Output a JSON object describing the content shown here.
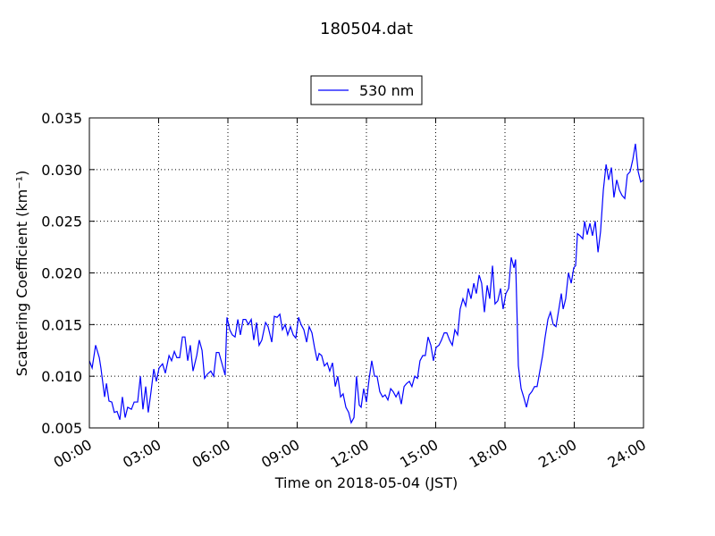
{
  "chart_data": {
    "type": "line",
    "title": "180504.dat",
    "x_label": "Time on 2018-05-04 (JST)",
    "y_label": "Scattering Coefficient (km⁻¹)",
    "legend": "top",
    "grid": true,
    "xlim": [
      0,
      24
    ],
    "xticks": [
      {
        "value": 0,
        "label": "00:00"
      },
      {
        "value": 3,
        "label": "03:00"
      },
      {
        "value": 6,
        "label": "06:00"
      },
      {
        "value": 9,
        "label": "09:00"
      },
      {
        "value": 12,
        "label": "12:00"
      },
      {
        "value": 15,
        "label": "15:00"
      },
      {
        "value": 18,
        "label": "18:00"
      },
      {
        "value": 21,
        "label": "21:00"
      },
      {
        "value": 24,
        "label": "24:00"
      }
    ],
    "ylim": [
      0.005,
      0.035
    ],
    "yticks": [
      0.005,
      {
        "value": 0.01,
        "label": "0.010"
      },
      0.015,
      {
        "value": 0.02,
        "label": "0.020"
      },
      0.025,
      {
        "value": 0.03,
        "label": "0.030"
      },
      0.035
    ],
    "x": [
      0,
      0.12,
      0.27,
      0.43,
      0.5,
      0.66,
      0.74,
      0.85,
      0.97,
      1.08,
      1.2,
      1.32,
      1.43,
      1.55,
      1.66,
      1.82,
      1.94,
      2.09,
      2.21,
      2.32,
      2.44,
      2.55,
      2.67,
      2.79,
      2.9,
      3.02,
      3.17,
      3.29,
      3.45,
      3.56,
      3.68,
      3.79,
      3.91,
      4.03,
      4.14,
      4.26,
      4.37,
      4.49,
      4.65,
      4.76,
      4.88,
      4.99,
      5.11,
      5.26,
      5.38,
      5.5,
      5.61,
      5.77,
      5.88,
      5.96,
      6.08,
      6.19,
      6.31,
      6.43,
      6.54,
      6.66,
      6.77,
      6.89,
      7.01,
      7.12,
      7.24,
      7.35,
      7.47,
      7.63,
      7.74,
      7.9,
      8.01,
      8.13,
      8.25,
      8.36,
      8.48,
      8.59,
      8.71,
      8.83,
      8.94,
      9.06,
      9.17,
      9.29,
      9.41,
      9.52,
      9.64,
      9.75,
      9.87,
      9.95,
      10.06,
      10.18,
      10.3,
      10.41,
      10.53,
      10.65,
      10.76,
      10.88,
      10.99,
      11.11,
      11.23,
      11.34,
      11.46,
      11.57,
      11.69,
      11.77,
      11.88,
      12.0,
      12.12,
      12.23,
      12.35,
      12.46,
      12.58,
      12.7,
      12.81,
      12.93,
      13.05,
      13.16,
      13.28,
      13.39,
      13.51,
      13.63,
      13.74,
      13.86,
      13.97,
      14.09,
      14.21,
      14.32,
      14.44,
      14.55,
      14.67,
      14.79,
      14.9,
      15.02,
      15.14,
      15.25,
      15.37,
      15.48,
      15.6,
      15.72,
      15.83,
      15.95,
      16.06,
      16.18,
      16.3,
      16.41,
      16.53,
      16.65,
      16.76,
      16.88,
      16.99,
      17.11,
      17.23,
      17.34,
      17.46,
      17.57,
      17.69,
      17.81,
      17.92,
      18.04,
      18.16,
      18.27,
      18.39,
      18.46,
      18.58,
      18.7,
      18.81,
      18.93,
      19.05,
      19.16,
      19.28,
      19.39,
      19.51,
      19.63,
      19.74,
      19.86,
      19.97,
      20.09,
      20.21,
      20.32,
      20.44,
      20.52,
      20.63,
      20.75,
      20.87,
      20.98,
      21.06,
      21.14,
      21.25,
      21.37,
      21.45,
      21.56,
      21.68,
      21.79,
      21.91,
      22.03,
      22.14,
      22.26,
      22.38,
      22.49,
      22.61,
      22.72,
      22.84,
      22.96,
      23.07,
      23.19,
      23.3,
      23.42,
      23.54,
      23.65,
      23.77,
      23.88,
      24.0
    ],
    "series": [
      {
        "name": "530 nm",
        "color": "#0000ff",
        "values": [
          0.0115,
          0.0108,
          0.013,
          0.0118,
          0.0108,
          0.008,
          0.0093,
          0.0076,
          0.0075,
          0.0065,
          0.0066,
          0.0058,
          0.008,
          0.006,
          0.007,
          0.0068,
          0.0075,
          0.0075,
          0.01,
          0.0068,
          0.009,
          0.0065,
          0.0085,
          0.0107,
          0.0095,
          0.0108,
          0.0112,
          0.0103,
          0.012,
          0.0115,
          0.0124,
          0.0118,
          0.0118,
          0.0138,
          0.0138,
          0.0115,
          0.013,
          0.0105,
          0.012,
          0.0135,
          0.0125,
          0.0098,
          0.0102,
          0.0105,
          0.01,
          0.0123,
          0.0123,
          0.011,
          0.0101,
          0.0157,
          0.0145,
          0.014,
          0.0138,
          0.0155,
          0.014,
          0.0155,
          0.0155,
          0.015,
          0.0155,
          0.0135,
          0.0152,
          0.013,
          0.0135,
          0.0152,
          0.0148,
          0.0133,
          0.0158,
          0.0157,
          0.016,
          0.0145,
          0.015,
          0.014,
          0.0148,
          0.014,
          0.0137,
          0.0157,
          0.015,
          0.0145,
          0.0133,
          0.0148,
          0.0142,
          0.0128,
          0.0115,
          0.0122,
          0.012,
          0.011,
          0.0113,
          0.0105,
          0.0113,
          0.009,
          0.01,
          0.008,
          0.0083,
          0.007,
          0.0065,
          0.0055,
          0.006,
          0.01,
          0.0072,
          0.007,
          0.0088,
          0.0075,
          0.0098,
          0.0115,
          0.01,
          0.01,
          0.0085,
          0.008,
          0.0082,
          0.0077,
          0.0088,
          0.0085,
          0.008,
          0.0085,
          0.0073,
          0.009,
          0.0093,
          0.0095,
          0.009,
          0.01,
          0.0098,
          0.0115,
          0.012,
          0.012,
          0.0138,
          0.013,
          0.0115,
          0.0128,
          0.013,
          0.0135,
          0.0142,
          0.0142,
          0.0135,
          0.013,
          0.0145,
          0.014,
          0.0165,
          0.0175,
          0.0168,
          0.0185,
          0.0175,
          0.019,
          0.018,
          0.0198,
          0.019,
          0.0162,
          0.0188,
          0.0175,
          0.0207,
          0.017,
          0.0173,
          0.0185,
          0.0165,
          0.018,
          0.0185,
          0.0215,
          0.0205,
          0.0213,
          0.011,
          0.0088,
          0.008,
          0.007,
          0.0082,
          0.0085,
          0.009,
          0.009,
          0.0105,
          0.012,
          0.0138,
          0.0155,
          0.0162,
          0.015,
          0.0148,
          0.0163,
          0.018,
          0.0165,
          0.0175,
          0.02,
          0.019,
          0.0205,
          0.0207,
          0.0238,
          0.0236,
          0.0233,
          0.025,
          0.0237,
          0.0248,
          0.0236,
          0.025,
          0.022,
          0.024,
          0.028,
          0.0305,
          0.029,
          0.0302,
          0.0273,
          0.029,
          0.028,
          0.0275,
          0.0272,
          0.0295,
          0.0298,
          0.031,
          0.0325,
          0.0298,
          0.0288,
          0.029
        ]
      }
    ]
  }
}
